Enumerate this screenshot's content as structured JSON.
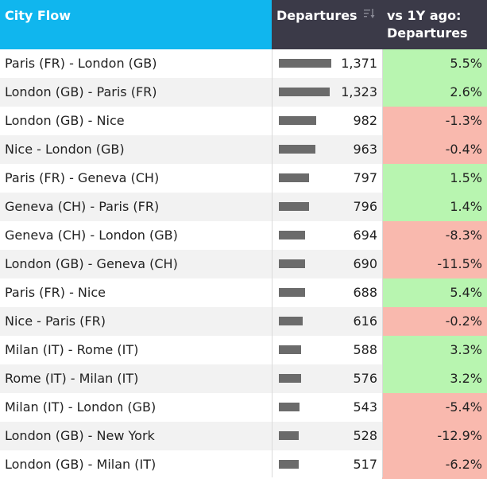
{
  "header": {
    "city_flow": "City Flow",
    "departures": "Departures",
    "vs_line1": "vs 1Y ago:",
    "vs_line2": "Departures"
  },
  "colors": {
    "header_city_bg": "#10b6ee",
    "header_dark_bg": "#3b3a48",
    "positive": "#b8f5b0",
    "negative": "#f9b9ae",
    "bar": "#6b6b6b"
  },
  "icons": {
    "sort": "sort-descending-icon"
  },
  "rows": [
    {
      "city": "Paris (FR) - London (GB)",
      "departures": "1,371",
      "value": 1371,
      "change": "5.5%",
      "trend": "pos"
    },
    {
      "city": "London (GB) - Paris (FR)",
      "departures": "1,323",
      "value": 1323,
      "change": "2.6%",
      "trend": "pos"
    },
    {
      "city": "London (GB) - Nice",
      "departures": "982",
      "value": 982,
      "change": "-1.3%",
      "trend": "neg"
    },
    {
      "city": "Nice - London (GB)",
      "departures": "963",
      "value": 963,
      "change": "-0.4%",
      "trend": "neg"
    },
    {
      "city": "Paris (FR) - Geneva (CH)",
      "departures": "797",
      "value": 797,
      "change": "1.5%",
      "trend": "pos"
    },
    {
      "city": "Geneva (CH) - Paris (FR)",
      "departures": "796",
      "value": 796,
      "change": "1.4%",
      "trend": "pos"
    },
    {
      "city": "Geneva (CH) - London (GB)",
      "departures": "694",
      "value": 694,
      "change": "-8.3%",
      "trend": "neg"
    },
    {
      "city": "London (GB) - Geneva (CH)",
      "departures": "690",
      "value": 690,
      "change": "-11.5%",
      "trend": "neg"
    },
    {
      "city": "Paris (FR) - Nice",
      "departures": "688",
      "value": 688,
      "change": "5.4%",
      "trend": "pos"
    },
    {
      "city": "Nice - Paris (FR)",
      "departures": "616",
      "value": 616,
      "change": "-0.2%",
      "trend": "neg"
    },
    {
      "city": "Milan (IT) - Rome (IT)",
      "departures": "588",
      "value": 588,
      "change": "3.3%",
      "trend": "pos"
    },
    {
      "city": "Rome (IT) - Milan (IT)",
      "departures": "576",
      "value": 576,
      "change": "3.2%",
      "trend": "pos"
    },
    {
      "city": "Milan (IT) - London (GB)",
      "departures": "543",
      "value": 543,
      "change": "-5.4%",
      "trend": "neg"
    },
    {
      "city": "London (GB) - New York",
      "departures": "528",
      "value": 528,
      "change": "-12.9%",
      "trend": "neg"
    },
    {
      "city": "London (GB) - Milan (IT)",
      "departures": "517",
      "value": 517,
      "change": "-6.2%",
      "trend": "neg"
    }
  ]
}
